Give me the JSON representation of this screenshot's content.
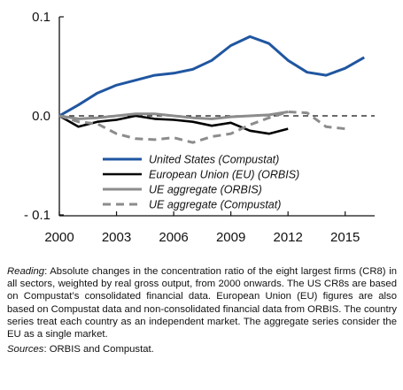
{
  "chart_data": {
    "type": "line",
    "x_tick_labels": [
      "2000",
      "2003",
      "2006",
      "2009",
      "2012",
      "2015"
    ],
    "y_tick_labels": [
      "0.1",
      "0.0",
      "- 0.1"
    ],
    "xlim": [
      2000,
      2016.5
    ],
    "ylim": [
      -0.1,
      0.1
    ],
    "grid": false,
    "zero_line": "dashed",
    "legend_position": "bottom-center",
    "series": [
      {
        "name": "United States (Compustat)",
        "color": "#1f56a0",
        "dash": "solid",
        "x": [
          2000,
          2001,
          2002,
          2003,
          2004,
          2005,
          2006,
          2007,
          2008,
          2009,
          2010,
          2011,
          2012,
          2013,
          2014,
          2015,
          2016
        ],
        "y": [
          0.0,
          0.011,
          0.023,
          0.031,
          0.036,
          0.041,
          0.043,
          0.047,
          0.056,
          0.071,
          0.08,
          0.073,
          0.056,
          0.044,
          0.041,
          0.048,
          0.059
        ]
      },
      {
        "name": "European Union (EU) (ORBIS)",
        "color": "#000000",
        "dash": "solid",
        "x": [
          2000,
          2001,
          2002,
          2003,
          2004,
          2005,
          2006,
          2007,
          2008,
          2009,
          2010,
          2011,
          2012
        ],
        "y": [
          0.0,
          -0.011,
          -0.006,
          -0.004,
          0.0,
          -0.003,
          -0.004,
          -0.006,
          -0.01,
          -0.007,
          -0.015,
          -0.018,
          -0.013
        ]
      },
      {
        "name": "UE aggregate (ORBIS)",
        "color": "#8c8c8c",
        "dash": "solid",
        "x": [
          2000,
          2001,
          2002,
          2003,
          2004,
          2005,
          2006,
          2007,
          2008,
          2009,
          2010,
          2011,
          2012
        ],
        "y": [
          0.0,
          -0.003,
          -0.002,
          0.0,
          0.002,
          0.002,
          0.0,
          -0.002,
          -0.003,
          -0.001,
          0.0,
          0.001,
          0.004
        ]
      },
      {
        "name": "UE aggregate (Compustat)",
        "color": "#8c8c8c",
        "dash": "dashed",
        "x": [
          2000,
          2001,
          2002,
          2003,
          2004,
          2005,
          2006,
          2007,
          2008,
          2009,
          2010,
          2011,
          2012,
          2013,
          2014,
          2015
        ],
        "y": [
          0.0,
          -0.006,
          -0.008,
          -0.018,
          -0.023,
          -0.024,
          -0.022,
          -0.027,
          -0.021,
          -0.018,
          -0.009,
          -0.002,
          0.004,
          0.003,
          -0.011,
          -0.013
        ]
      }
    ]
  },
  "notes": {
    "reading_label": "Reading",
    "reading_text": ": Absolute changes in the concentration ratio of the eight largest firms (CR8) in all sectors, weighted by real gross output, from 2000 onwards. The US CR8s are based on Compustat’s consolidated financial data. European Union (EU) figures are also based on Compustat data and non-consolidated financial data from ORBIS. The country series treat each country as an independent market. The aggregate series consider the EU as a single market.",
    "sources_label": "Sources",
    "sources_text": ": ORBIS and Compustat."
  }
}
